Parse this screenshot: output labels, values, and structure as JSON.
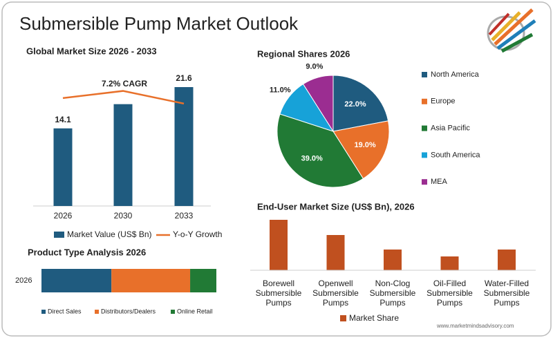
{
  "title": "Submersible Pump Market Outlook",
  "source": "www.marketmindsadvisory.com",
  "chart_data": [
    {
      "type": "bar-line",
      "title": "Global Market Size 2026 - 2033",
      "categories": [
        "2026",
        "2030",
        "2033"
      ],
      "series": [
        {
          "name": "Market Value (US$ Bn)",
          "color": "#1f5b7f",
          "values": [
            14.1,
            18.5,
            21.6
          ],
          "value_labels": [
            "14.1",
            null,
            "21.6"
          ]
        },
        {
          "name": "Y-o-Y Growth",
          "color": "#e8702a",
          "type": "line",
          "values": [
            19.6,
            20.9,
            18.6
          ]
        }
      ],
      "annotation": "7.2% CAGR"
    },
    {
      "type": "pie",
      "title": "Regional Shares 2026",
      "categories": [
        "North America",
        "Europe",
        "Asia Pacific",
        "South America",
        "MEA"
      ],
      "values": [
        22,
        19,
        39,
        11,
        9
      ],
      "value_labels": [
        "22.0%",
        "19.0%",
        "39.0%",
        "11.0%",
        "9.0%"
      ],
      "colors": [
        "#1f5b7f",
        "#e8702a",
        "#217a35",
        "#17a2d8",
        "#9b2d91"
      ]
    },
    {
      "type": "bar",
      "title": "End-User Market Size (US$ Bn), 2026",
      "categories": [
        "Borewell Submersible Pumps",
        "Openwell Submersible Pumps",
        "Non-Clog Submersible Pumps",
        "Oil-Filled Submersible Pumps",
        "Water-Filled Submersible Pumps"
      ],
      "series": [
        {
          "name": "Market Share",
          "color": "#c0501f",
          "values": [
            7.3,
            5.1,
            3.0,
            2.0,
            3.0
          ]
        }
      ]
    },
    {
      "type": "stacked-hbar",
      "title": "Product Type Analysis 2026",
      "categories": [
        "2026"
      ],
      "series": [
        {
          "name": "Direct Sales",
          "color": "#1f5b7f",
          "values": [
            40
          ]
        },
        {
          "name": "Distributors/Dealers",
          "color": "#e8702a",
          "values": [
            45
          ]
        },
        {
          "name": "Online Retail",
          "color": "#217a35",
          "values": [
            15
          ]
        }
      ]
    }
  ]
}
